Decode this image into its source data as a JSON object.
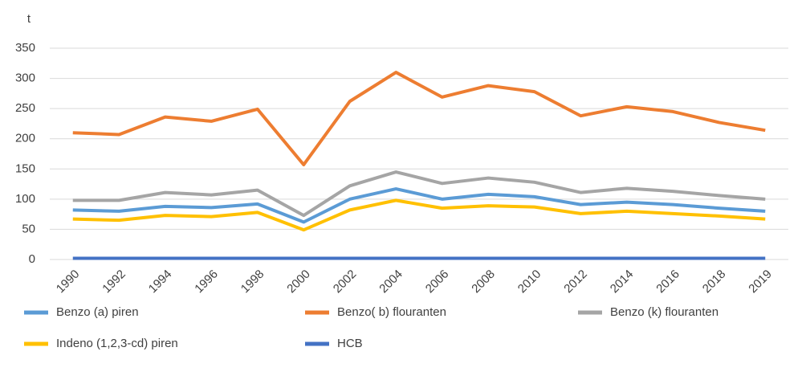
{
  "chart_data": {
    "type": "line",
    "y_label": "t",
    "categories": [
      "1990",
      "1992",
      "1994",
      "1996",
      "1998",
      "2000",
      "2002",
      "2004",
      "2006",
      "2008",
      "2010",
      "2012",
      "2014",
      "2016",
      "2018",
      "2019"
    ],
    "series": [
      {
        "name": "Benzo (a) piren",
        "color": "#5b9bd5",
        "values": [
          82,
          80,
          88,
          86,
          92,
          62,
          100,
          117,
          100,
          108,
          104,
          91,
          95,
          91,
          85,
          80
        ]
      },
      {
        "name": "Benzo( b) flouranten",
        "color": "#ed7d31",
        "values": [
          210,
          207,
          236,
          229,
          249,
          157,
          262,
          310,
          269,
          288,
          278,
          238,
          253,
          245,
          227,
          214
        ]
      },
      {
        "name": "Benzo (k) flouranten",
        "color": "#a5a5a5",
        "values": [
          98,
          98,
          111,
          107,
          115,
          73,
          122,
          145,
          126,
          135,
          128,
          111,
          118,
          113,
          106,
          100
        ]
      },
      {
        "name": "Indeno (1,2,3-cd) piren",
        "color": "#ffc000",
        "values": [
          67,
          65,
          73,
          71,
          78,
          49,
          82,
          98,
          85,
          89,
          87,
          76,
          80,
          76,
          72,
          67
        ]
      },
      {
        "name": "HCB",
        "color": "#4472c4",
        "values": [
          2,
          2,
          2,
          2,
          2,
          2,
          2,
          2,
          2,
          2,
          2,
          2,
          2,
          2,
          2,
          2
        ]
      }
    ],
    "ylim": [
      0,
      350
    ],
    "yticks": [
      0,
      50,
      100,
      150,
      200,
      250,
      300,
      350
    ],
    "grid": true
  }
}
